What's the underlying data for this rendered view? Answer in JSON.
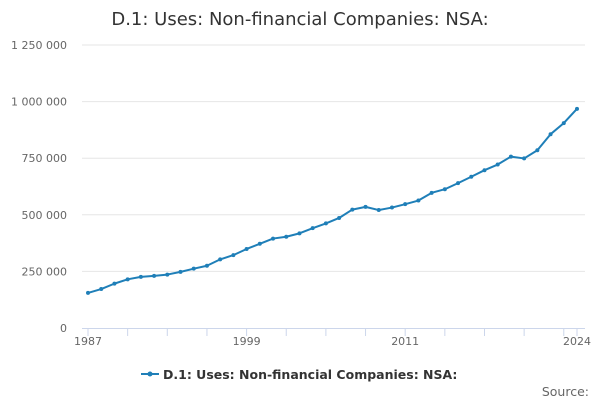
{
  "chart_data": {
    "type": "line",
    "title": "D.1: Uses: Non-financial Companies: NSA:",
    "xlabel": "",
    "ylabel": "",
    "x": [
      1987,
      1988,
      1989,
      1990,
      1991,
      1992,
      1993,
      1994,
      1995,
      1996,
      1997,
      1998,
      1999,
      2000,
      2001,
      2002,
      2003,
      2004,
      2005,
      2006,
      2007,
      2008,
      2009,
      2010,
      2011,
      2012,
      2013,
      2014,
      2015,
      2016,
      2017,
      2018,
      2019,
      2020,
      2021,
      2022,
      2023,
      2024
    ],
    "xticks": [
      "1987",
      "1999",
      "2011",
      "2024"
    ],
    "xlim": [
      1987,
      2024
    ],
    "ylim": [
      0,
      1250000
    ],
    "yticks": [
      {
        "value": 0,
        "label": "0"
      },
      {
        "value": 250000,
        "label": "250 000"
      },
      {
        "value": 500000,
        "label": "500 000"
      },
      {
        "value": 750000,
        "label": "750 000"
      },
      {
        "value": 1000000,
        "label": "1 000 000"
      },
      {
        "value": 1250000,
        "label": "1 250 000"
      }
    ],
    "grid": true,
    "legend_position": "bottom-center",
    "series": [
      {
        "name": "D.1: Uses: Non-financial Companies: NSA:",
        "color": "#1f7fb8",
        "values": [
          155000,
          172000,
          196000,
          215000,
          226000,
          230000,
          236000,
          248000,
          262000,
          275000,
          303000,
          322000,
          349000,
          372000,
          395000,
          403000,
          418000,
          441000,
          462000,
          486000,
          523000,
          535000,
          521000,
          532000,
          547000,
          563000,
          597000,
          613000,
          640000,
          668000,
          697000,
          722000,
          757000,
          749000,
          785000,
          856000,
          905000,
          968000
        ]
      }
    ]
  },
  "footer": {
    "source_label": "Source:"
  }
}
